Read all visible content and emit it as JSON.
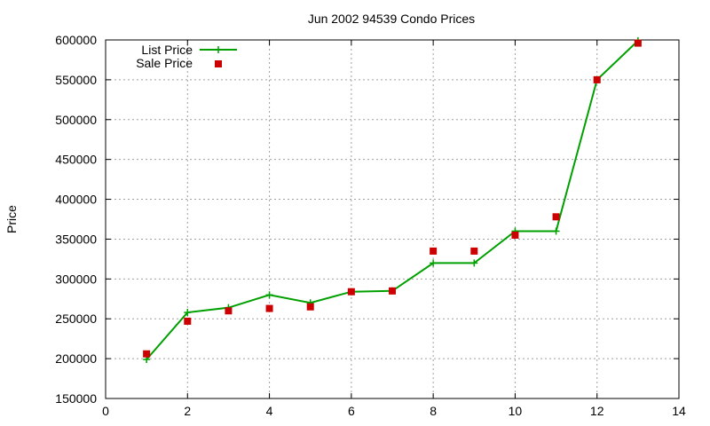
{
  "chart_data": {
    "type": "line",
    "title": "Jun 2002 94539 Condo Prices",
    "xlabel": "",
    "ylabel": "Price",
    "xlim": [
      0,
      14
    ],
    "ylim": [
      150000,
      600000
    ],
    "xticks": [
      0,
      2,
      4,
      6,
      8,
      10,
      12,
      14
    ],
    "yticks": [
      150000,
      200000,
      250000,
      300000,
      350000,
      400000,
      450000,
      500000,
      550000,
      600000
    ],
    "grid": true,
    "legend_position": "top-left",
    "series": [
      {
        "name": "List Price",
        "style": "line-points",
        "color": "#00a000",
        "marker": "plus",
        "x": [
          1,
          2,
          3,
          4,
          5,
          6,
          7,
          8,
          9,
          10,
          11,
          12,
          13
        ],
        "y": [
          199000,
          258000,
          264000,
          280000,
          270000,
          284000,
          285000,
          320000,
          320000,
          360000,
          360000,
          550000,
          599000
        ]
      },
      {
        "name": "Sale Price",
        "style": "points",
        "color": "#cc0000",
        "marker": "square",
        "x": [
          1,
          2,
          3,
          4,
          5,
          6,
          7,
          8,
          9,
          10,
          11,
          12,
          13
        ],
        "y": [
          206000,
          247000,
          260000,
          263000,
          265000,
          284000,
          285000,
          335000,
          335000,
          355000,
          378000,
          550000,
          596000
        ]
      }
    ]
  }
}
